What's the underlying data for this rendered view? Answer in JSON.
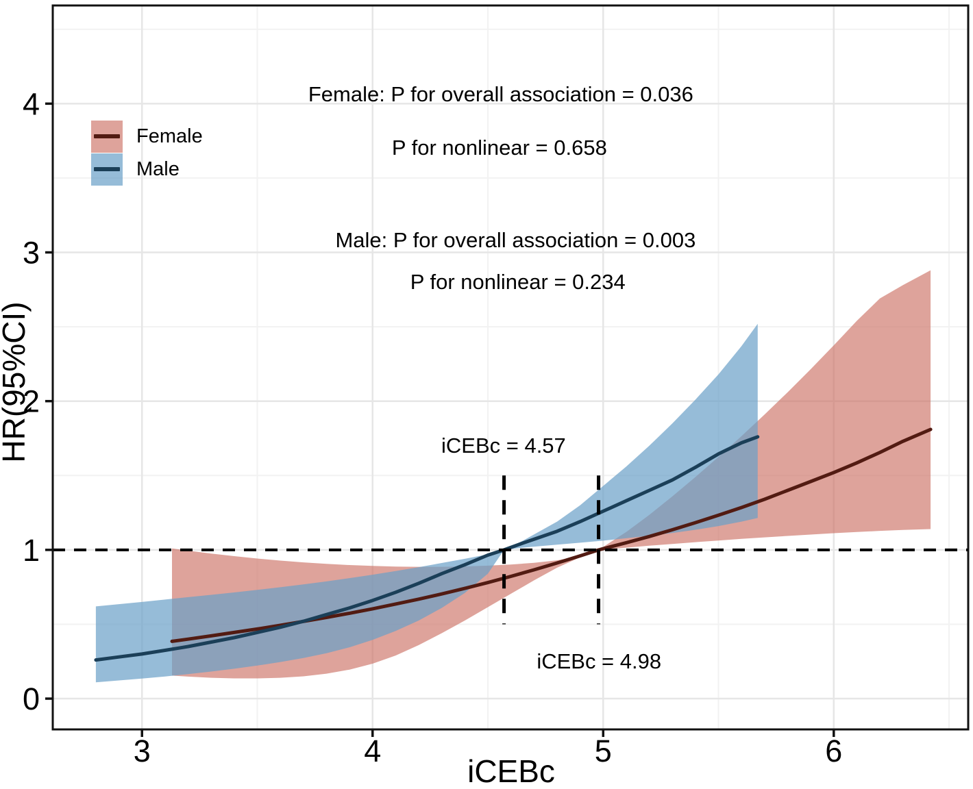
{
  "figure": {
    "background": "#ffffff"
  },
  "chart_data": {
    "type": "line",
    "title": "",
    "xlabel": "iCEBc",
    "ylabel": "HR(95%CI)",
    "xlim": [
      2.613,
      6.583
    ],
    "ylim": [
      -0.207,
      4.66
    ],
    "x_major_ticks": [
      3,
      4,
      5,
      6
    ],
    "x_minor_ticks": [
      3.5,
      4.5,
      5.5,
      6.5
    ],
    "y_major_ticks": [
      0,
      1,
      2,
      3,
      4
    ],
    "y_minor_ticks": [
      0.5,
      1.5,
      2.5,
      3.5,
      4.5
    ],
    "grid": true,
    "legend_position": "inside-top-left",
    "reference_hr": 1.0,
    "reference_lines": [
      {
        "x": 4.57,
        "y_from": 0.5,
        "y_to": 1.5
      },
      {
        "x": 4.98,
        "y_from": 0.5,
        "y_to": 1.5
      }
    ],
    "series": [
      {
        "name": "Female",
        "line_color": "#521b12",
        "fill_color": "rgba(205,113,102,0.65)",
        "p_overall_association": "0.036",
        "p_nonlinear": "0.658",
        "hr_equals_1_at": 4.98,
        "x": [
          3.13,
          3.2,
          3.3,
          3.4,
          3.5,
          3.6,
          3.7,
          3.8,
          3.9,
          4.0,
          4.1,
          4.2,
          4.3,
          4.4,
          4.5,
          4.6,
          4.7,
          4.8,
          4.9,
          4.98,
          5.1,
          5.2,
          5.3,
          5.4,
          5.5,
          5.6,
          5.7,
          5.8,
          5.9,
          6.0,
          6.1,
          6.2,
          6.3,
          6.42
        ],
        "hr": [
          0.385,
          0.4,
          0.422,
          0.445,
          0.468,
          0.493,
          0.519,
          0.546,
          0.574,
          0.604,
          0.636,
          0.669,
          0.704,
          0.741,
          0.78,
          0.822,
          0.866,
          0.912,
          0.96,
          1.0,
          1.048,
          1.09,
          1.135,
          1.183,
          1.233,
          1.285,
          1.34,
          1.4,
          1.46,
          1.52,
          1.585,
          1.655,
          1.73,
          1.81
        ],
        "lower": [
          0.155,
          0.148,
          0.14,
          0.136,
          0.136,
          0.14,
          0.15,
          0.168,
          0.195,
          0.235,
          0.29,
          0.36,
          0.44,
          0.525,
          0.615,
          0.705,
          0.795,
          0.88,
          0.95,
          1.0,
          1.015,
          1.028,
          1.04,
          1.052,
          1.063,
          1.074,
          1.084,
          1.094,
          1.103,
          1.112,
          1.12,
          1.128,
          1.134,
          1.14
        ],
        "upper": [
          1.01,
          0.995,
          0.975,
          0.958,
          0.942,
          0.928,
          0.916,
          0.906,
          0.898,
          0.892,
          0.888,
          0.886,
          0.886,
          0.889,
          0.894,
          0.902,
          0.913,
          0.93,
          0.958,
          1.0,
          1.12,
          1.235,
          1.36,
          1.49,
          1.625,
          1.765,
          1.91,
          2.06,
          2.215,
          2.375,
          2.54,
          2.69,
          2.78,
          2.88
        ]
      },
      {
        "name": "Male",
        "line_color": "#1b3f58",
        "fill_color": "rgba(105,160,199,0.70)",
        "p_overall_association": "0.003",
        "p_nonlinear": "0.234",
        "hr_equals_1_at": 4.57,
        "x": [
          2.8,
          2.9,
          3.0,
          3.1,
          3.2,
          3.3,
          3.4,
          3.5,
          3.6,
          3.7,
          3.8,
          3.9,
          4.0,
          4.1,
          4.2,
          4.3,
          4.4,
          4.5,
          4.57,
          4.65,
          4.8,
          4.9,
          5.0,
          5.1,
          5.2,
          5.3,
          5.4,
          5.5,
          5.6,
          5.67
        ],
        "hr": [
          0.26,
          0.28,
          0.3,
          0.325,
          0.35,
          0.38,
          0.41,
          0.445,
          0.48,
          0.52,
          0.565,
          0.61,
          0.66,
          0.715,
          0.775,
          0.84,
          0.9,
          0.965,
          1.0,
          1.045,
          1.125,
          1.19,
          1.26,
          1.33,
          1.4,
          1.47,
          1.555,
          1.645,
          1.72,
          1.76
        ],
        "lower": [
          0.11,
          0.122,
          0.135,
          0.149,
          0.165,
          0.182,
          0.201,
          0.222,
          0.246,
          0.273,
          0.305,
          0.345,
          0.395,
          0.455,
          0.525,
          0.61,
          0.71,
          0.84,
          1.0,
          1.015,
          1.035,
          1.048,
          1.062,
          1.078,
          1.095,
          1.113,
          1.135,
          1.16,
          1.19,
          1.215
        ],
        "upper": [
          0.62,
          0.635,
          0.65,
          0.666,
          0.682,
          0.698,
          0.714,
          0.731,
          0.749,
          0.768,
          0.788,
          0.81,
          0.833,
          0.858,
          0.884,
          0.912,
          0.94,
          0.97,
          1.0,
          1.06,
          1.19,
          1.3,
          1.43,
          1.56,
          1.7,
          1.85,
          2.01,
          2.18,
          2.37,
          2.52
        ]
      }
    ],
    "annotations": [
      {
        "text": "Female: P for overall association = 0.036",
        "x": 4.556,
        "y": 4.06
      },
      {
        "text": "P for nonlinear = 0.658",
        "x": 4.55,
        "y": 3.7
      },
      {
        "text": "Male: P for overall association = 0.003",
        "x": 4.62,
        "y": 3.08
      },
      {
        "text": "P for nonlinear = 0.234",
        "x": 4.63,
        "y": 2.8
      },
      {
        "text": "iCEBc = 4.57",
        "x": 4.568,
        "y": 1.7
      },
      {
        "text": "iCEBc = 4.98",
        "x": 4.982,
        "y": 0.25
      }
    ],
    "style": {
      "grid_major_color": "#e6e6e6",
      "grid_minor_color": "#f2f2f2",
      "panel_border_color": "#111111",
      "tick_color": "#111111",
      "dashed_line_color": "#000000"
    }
  },
  "legend": {
    "items": [
      {
        "label": "Female"
      },
      {
        "label": "Male"
      }
    ]
  }
}
